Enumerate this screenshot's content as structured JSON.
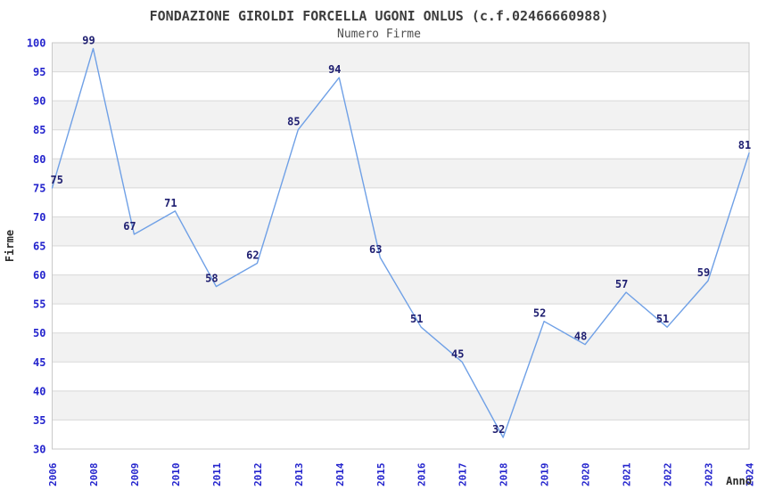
{
  "chart_data": {
    "type": "line",
    "title": "FONDAZIONE GIROLDI FORCELLA UGONI ONLUS (c.f.02466660988)",
    "subtitle": "Numero Firme",
    "xlabel": "Anno",
    "ylabel": "Firme",
    "categories": [
      "2006",
      "2008",
      "2009",
      "2010",
      "2011",
      "2012",
      "2013",
      "2014",
      "2015",
      "2016",
      "2017",
      "2018",
      "2019",
      "2020",
      "2021",
      "2022",
      "2023",
      "2024"
    ],
    "values": [
      75,
      99,
      67,
      71,
      58,
      62,
      85,
      94,
      63,
      51,
      45,
      32,
      52,
      48,
      57,
      51,
      59,
      81
    ],
    "ylim": [
      30,
      100
    ],
    "ytick_step": 5,
    "yticks": [
      30,
      35,
      40,
      45,
      50,
      55,
      60,
      65,
      70,
      75,
      80,
      85,
      90,
      95,
      100
    ],
    "grid": true,
    "legend": "none",
    "band_fill": "alternating horizontal stripes, gray band at top",
    "colors": {
      "line": "#6fa0e6",
      "tick_label": "#2424cd",
      "data_label": "#1e1e70",
      "title_text": "#3d3d3d",
      "subtitle_text": "#4f4f4f",
      "axis_title_text": "#2b2b2b",
      "stripe_gray": "#f2f2f2",
      "stripe_white": "#ffffff",
      "gridline": "#d8d8d8",
      "plot_border": "#c9c9c9",
      "background": "#ffffff"
    }
  }
}
